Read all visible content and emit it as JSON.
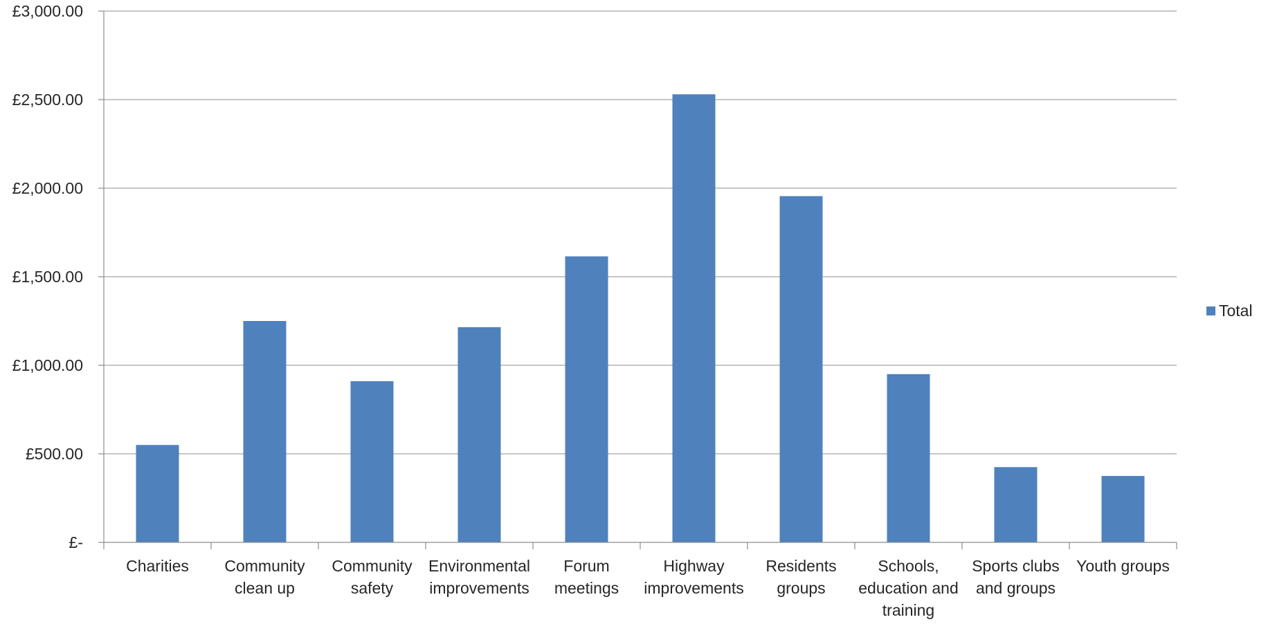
{
  "chart_data": {
    "type": "bar",
    "title": "",
    "xlabel": "",
    "ylabel": "",
    "ylim": [
      0,
      3000
    ],
    "y_ticks": [
      0,
      500,
      1000,
      1500,
      2000,
      2500,
      3000
    ],
    "y_tick_labels": [
      "£-",
      "£500.00",
      "£1,000.00",
      "£1,500.00",
      "£2,000.00",
      "£2,500.00",
      "£3,000.00"
    ],
    "grid": true,
    "legend_position": "right",
    "categories": [
      [
        "Charities"
      ],
      [
        "Community",
        "clean up"
      ],
      [
        "Community",
        "safety"
      ],
      [
        "Environmental",
        "improvements"
      ],
      [
        "Forum",
        "meetings"
      ],
      [
        "Highway",
        "improvements"
      ],
      [
        "Residents",
        "groups"
      ],
      [
        "Schools,",
        "education and",
        "training"
      ],
      [
        "Sports clubs",
        "and groups"
      ],
      [
        "Youth groups"
      ]
    ],
    "series": [
      {
        "name": "Total",
        "color": "#4f81bd",
        "values": [
          550,
          1250,
          910,
          1215,
          1615,
          2530,
          1955,
          950,
          425,
          375
        ]
      }
    ]
  }
}
